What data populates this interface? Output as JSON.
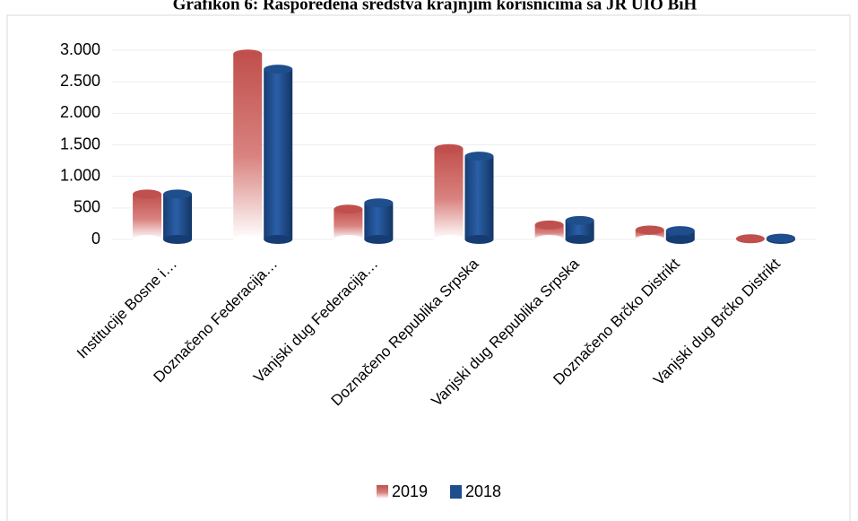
{
  "chart_data": {
    "type": "bar",
    "title": "Grafikon 6: Raspoređena sredstva krajnjim korisnicima sa JR UIO BiH",
    "categories": [
      "Institucije Bosne i…",
      "Doznačeno Federacija…",
      "Vanjski dug Federacija…",
      "Doznačeno Republika Srpska",
      "Vanjski dug Republika Srpska",
      "Doznačeno Brčko Distrikt",
      "Vanjski dug Brčko Distrikt"
    ],
    "series": [
      {
        "name": "2019",
        "color": "#c0504d",
        "values": [
          720,
          2940,
          480,
          1440,
          230,
          150,
          10
        ]
      },
      {
        "name": "2018",
        "color": "#1f4e8c",
        "values": [
          720,
          2700,
          580,
          1320,
          300,
          140,
          20
        ]
      }
    ],
    "ylim": [
      0,
      3000
    ],
    "yticks": [
      {
        "value": 0,
        "label": "0"
      },
      {
        "value": 500,
        "label": "500"
      },
      {
        "value": 1000,
        "label": "1.000"
      },
      {
        "value": 1500,
        "label": "1.500"
      },
      {
        "value": 2000,
        "label": "2.000"
      },
      {
        "value": 2500,
        "label": "2.500"
      },
      {
        "value": 3000,
        "label": "3.000"
      }
    ],
    "grid": true,
    "legend": "bottom"
  }
}
